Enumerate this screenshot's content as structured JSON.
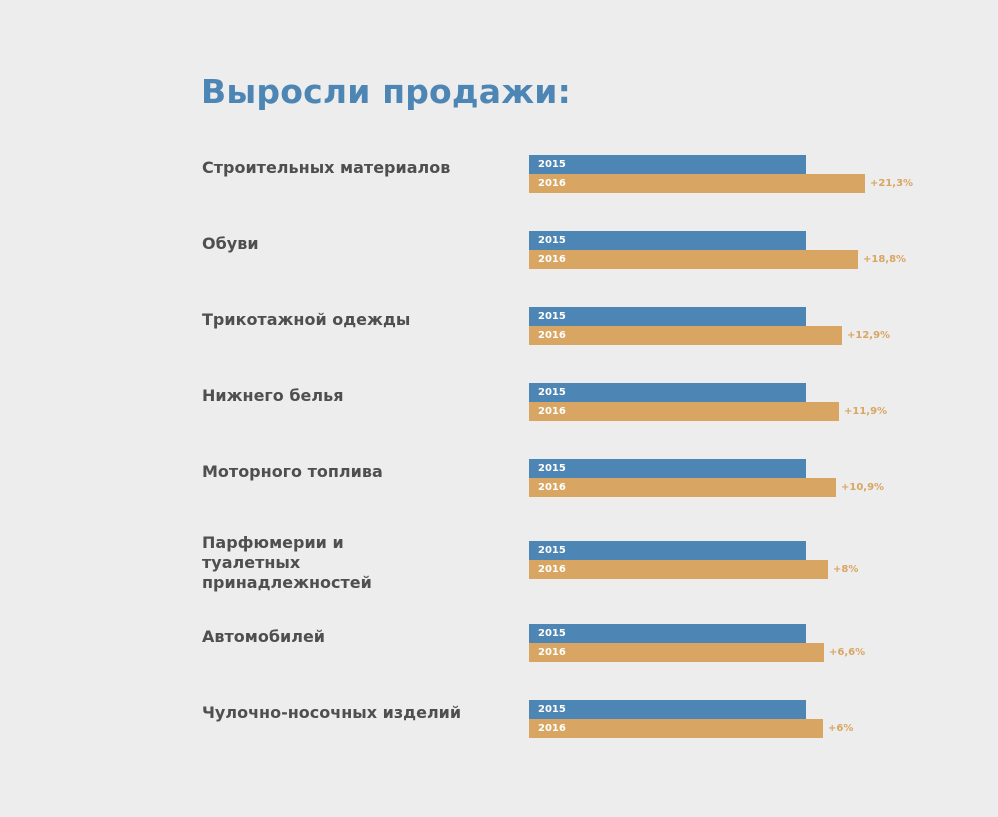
{
  "title": "Выросли продажи:",
  "colors": {
    "title": "#4d86b4",
    "series_2015": "#4d86b4",
    "series_2016": "#d9a562",
    "label_text": "#4f4f4f",
    "background": "#ededed"
  },
  "chart_data": {
    "type": "bar",
    "orientation": "horizontal",
    "title": "Выросли продажи:",
    "categories": [
      "Строительных материалов",
      "Обуви",
      "Трикотажной одежды",
      "Нижнего белья",
      "Моторного топлива",
      "Парфюмерии и туалетных принадлежностей",
      "Автомобилей",
      "Чулочно-носочных изделий"
    ],
    "series": [
      {
        "name": "2015",
        "values": [
          100,
          100,
          100,
          100,
          100,
          100,
          100,
          100
        ]
      },
      {
        "name": "2016",
        "values": [
          121.3,
          118.8,
          112.9,
          111.9,
          110.9,
          108,
          106.6,
          106
        ]
      }
    ],
    "annotations": [
      "+21,3%",
      "+18,8%",
      "+12,9%",
      "+11,9%",
      "+10,9%",
      "+8%",
      "+6,6%",
      "+6%"
    ],
    "xlim": [
      0,
      121.3
    ],
    "grid": false,
    "legend": "inline"
  }
}
